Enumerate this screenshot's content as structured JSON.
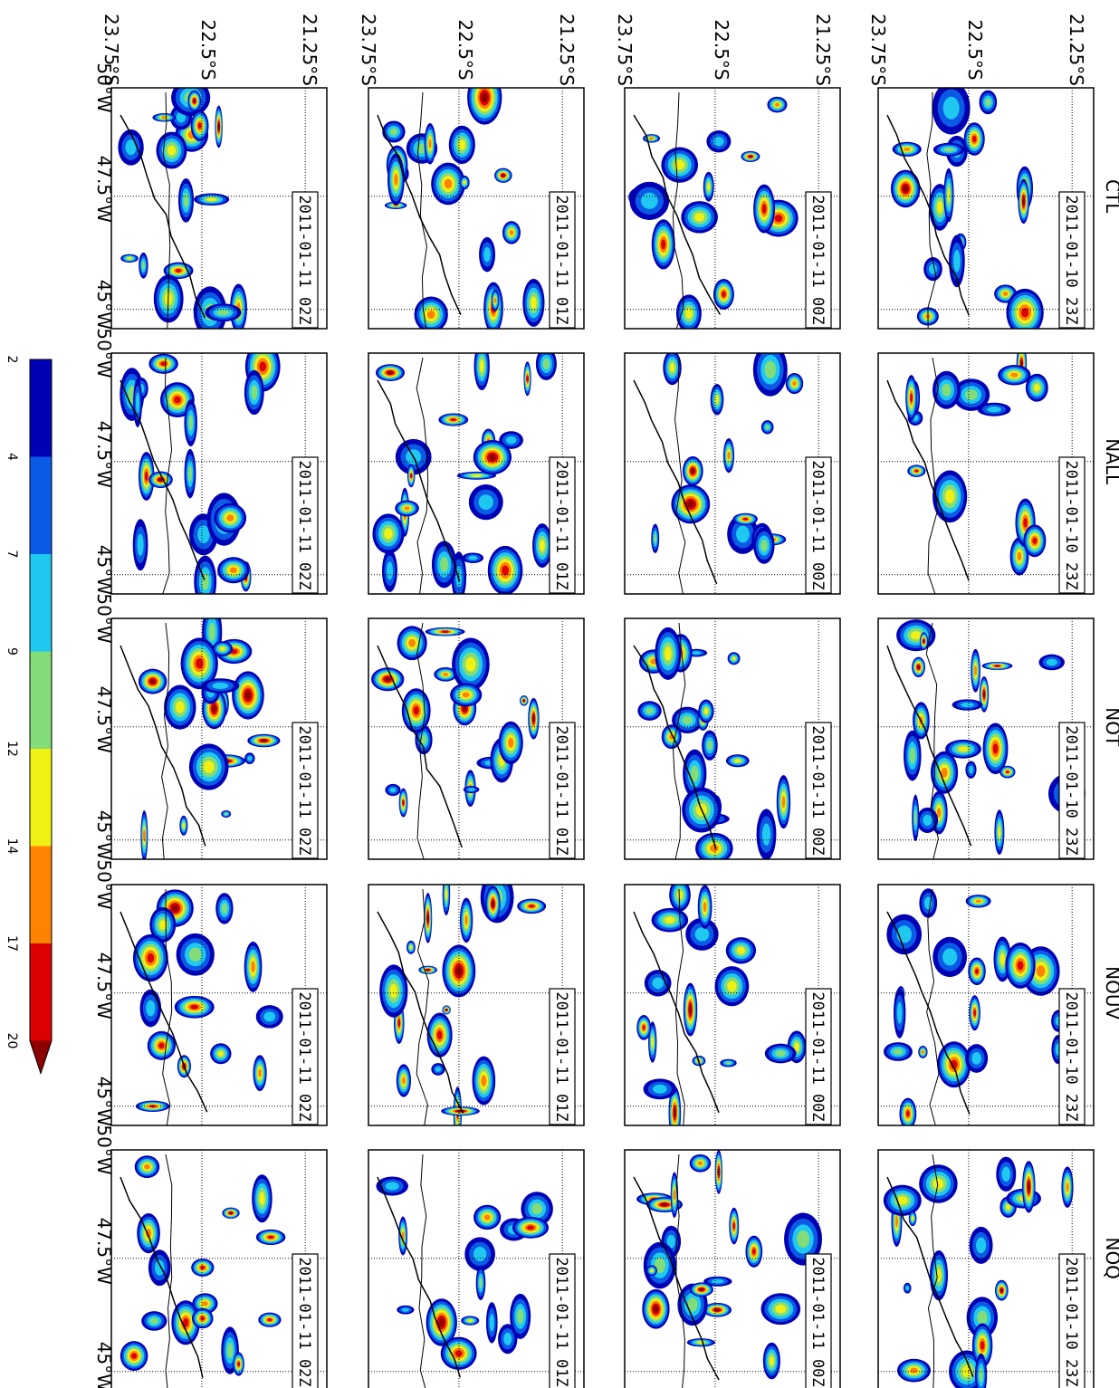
{
  "experiments": [
    "CTL",
    "NALL",
    "NOT",
    "NOUV",
    "NOQ"
  ],
  "times": [
    "2011-01-10 23Z",
    "2011-01-11 00Z",
    "2011-01-11 01Z",
    "2011-01-11 02Z"
  ],
  "lat_labels": [
    "21.25°S",
    "22.5°S",
    "23.75°S"
  ],
  "lon_labels": [
    "50°W",
    "47.5°W",
    "45°W"
  ],
  "colorbar": {
    "ticks": [
      "2",
      "4",
      "7",
      "9",
      "12",
      "14",
      "17",
      "20"
    ],
    "colors": [
      "#0000b4",
      "#0a5ae6",
      "#1ec8f0",
      "#82dc78",
      "#f0f014",
      "#ff8200",
      "#dc0000",
      "#8c0000"
    ],
    "extend": "max"
  }
}
